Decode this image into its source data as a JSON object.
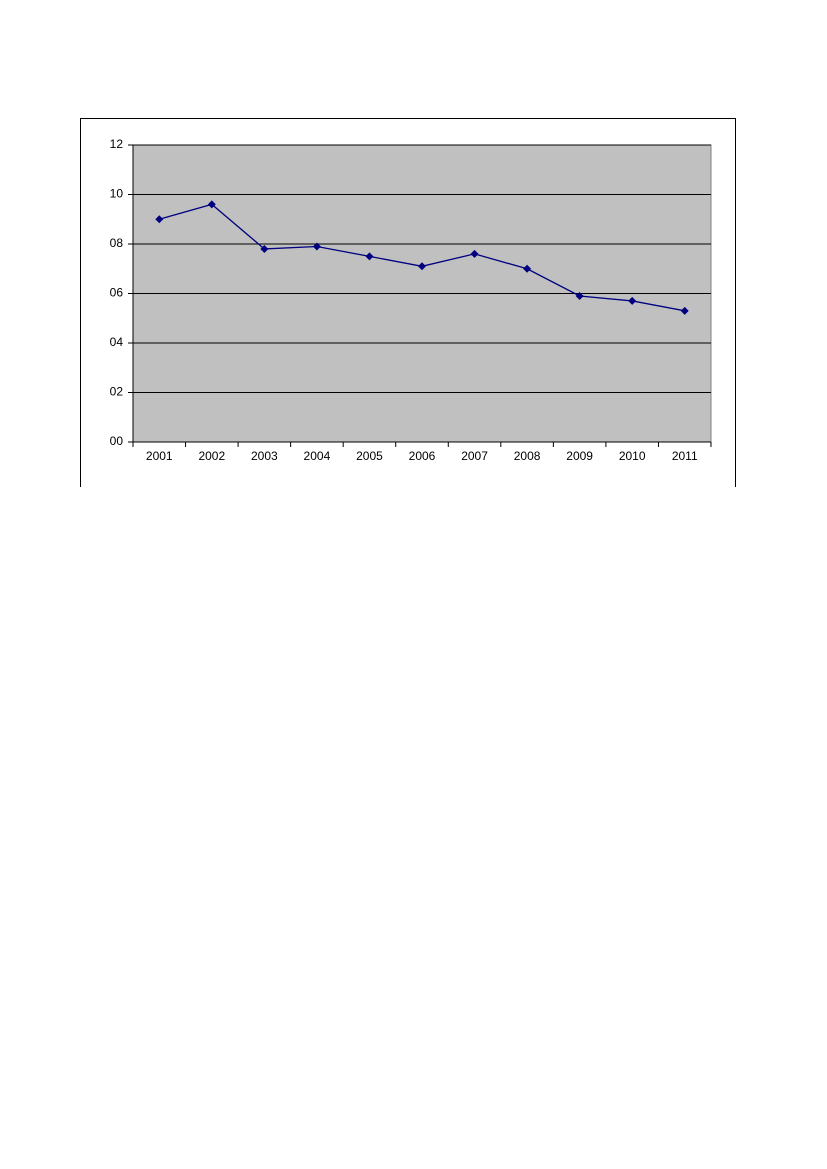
{
  "chart_data": {
    "type": "line",
    "categories": [
      "2001",
      "2002",
      "2003",
      "2004",
      "2005",
      "2006",
      "2007",
      "2008",
      "2009",
      "2010",
      "2011"
    ],
    "series": [
      {
        "color": "#000080",
        "values": [
          9.0,
          9.6,
          7.8,
          7.9,
          7.5,
          7.1,
          7.6,
          7.0,
          5.9,
          5.7,
          5.3
        ]
      }
    ],
    "ylim": [
      0,
      12
    ],
    "yticks": [
      {
        "value": 0,
        "label": "00"
      },
      {
        "value": 2,
        "label": "02"
      },
      {
        "value": 4,
        "label": "04"
      },
      {
        "value": 6,
        "label": "06"
      },
      {
        "value": 8,
        "label": "08"
      },
      10,
      12
    ],
    "grid": true,
    "plot_background": "#c0c0c0"
  }
}
